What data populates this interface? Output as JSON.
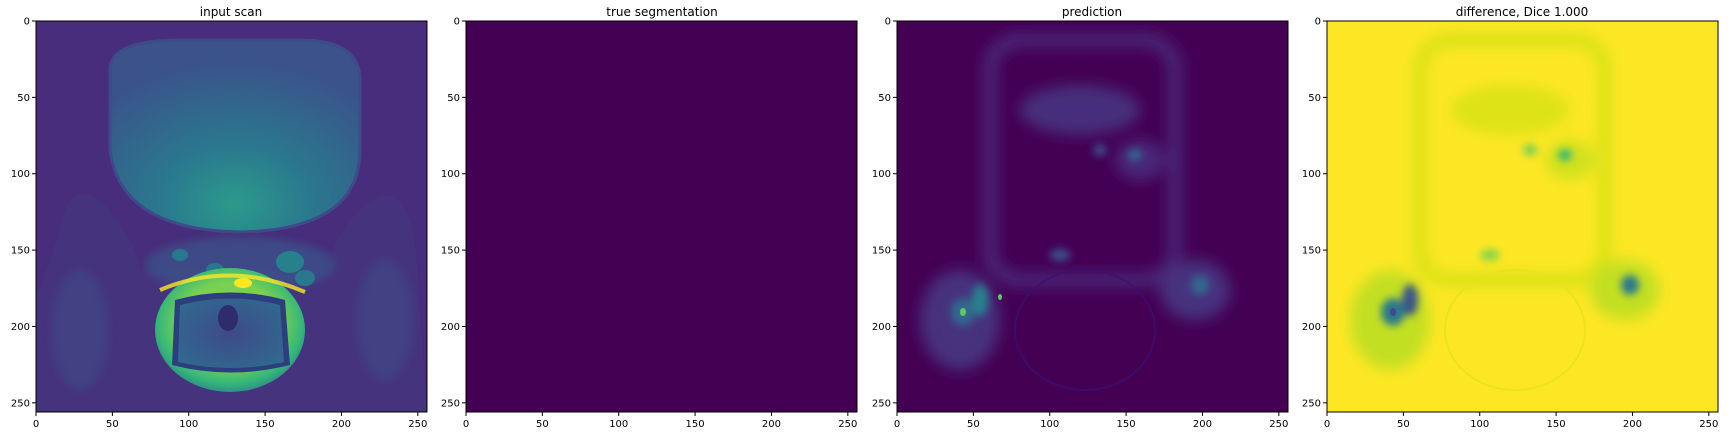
{
  "colors": {
    "viridis_dark": "#440154",
    "viridis_teal": "#21908d",
    "viridis_green": "#5ec962",
    "viridis_yellow": "#fde725",
    "background": "#ffffff"
  },
  "chart_data": [
    {
      "type": "heatmap",
      "title": "input scan",
      "xlabel": "",
      "ylabel": "",
      "colormap": "viridis",
      "xlim": [
        0,
        256
      ],
      "ylim": [
        256,
        0
      ],
      "xticks": [
        0,
        50,
        100,
        150,
        200,
        250
      ],
      "yticks": [
        0,
        50,
        100,
        150,
        200,
        250
      ],
      "grid": false
    },
    {
      "type": "heatmap",
      "title": "true segmentation",
      "xlabel": "",
      "ylabel": "",
      "colormap": "viridis",
      "xlim": [
        0,
        256
      ],
      "ylim": [
        256,
        0
      ],
      "xticks": [
        0,
        50,
        100,
        150,
        200,
        250
      ],
      "yticks": [
        0,
        50,
        100,
        150,
        200,
        250
      ],
      "grid": false
    },
    {
      "type": "heatmap",
      "title": "prediction",
      "xlabel": "",
      "ylabel": "",
      "colormap": "viridis",
      "xlim": [
        0,
        256
      ],
      "ylim": [
        256,
        0
      ],
      "xticks": [
        0,
        50,
        100,
        150,
        200,
        250
      ],
      "yticks": [
        0,
        50,
        100,
        150,
        200,
        250
      ],
      "grid": false
    },
    {
      "type": "heatmap",
      "title": "difference, Dice 1.000",
      "xlabel": "",
      "ylabel": "",
      "colormap": "viridis",
      "xlim": [
        0,
        256
      ],
      "ylim": [
        256,
        0
      ],
      "xticks": [
        0,
        50,
        100,
        150,
        200,
        250
      ],
      "yticks": [
        0,
        50,
        100,
        150,
        200,
        250
      ],
      "grid": false
    }
  ]
}
